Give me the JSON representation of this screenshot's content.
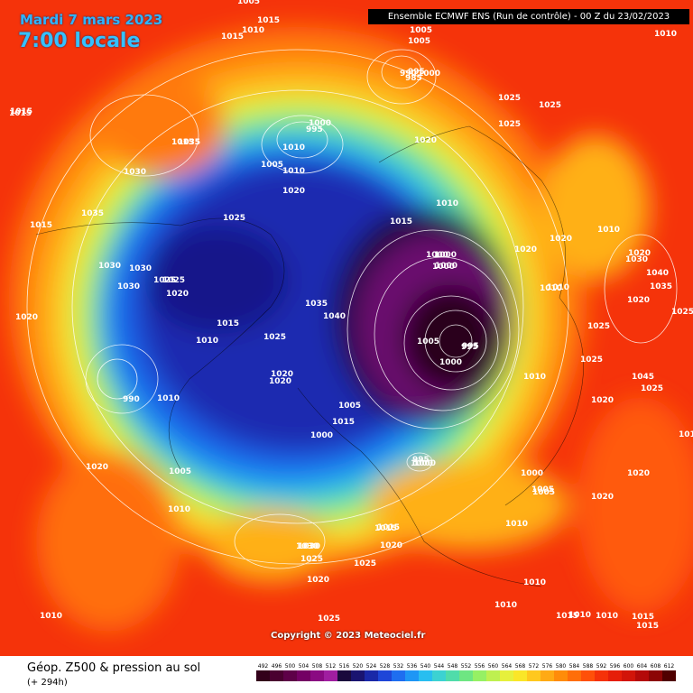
{
  "header": {
    "date": "Mardi 7 mars 2023",
    "time": "7:00 locale",
    "model_banner": "Ensemble ECMWF ENS  (Run de contrôle)  -  00 Z du 23/02/2023"
  },
  "copyright": "Copyright © 2023 Meteociel.fr",
  "footer": {
    "variable_label": "Géop. Z500 & pression au sol",
    "lead_label": "(+ 294h)"
  },
  "legend_scale": [
    {
      "v": "492",
      "c": "#33001a"
    },
    {
      "v": "496",
      "c": "#4a0030"
    },
    {
      "v": "500",
      "c": "#5e0048"
    },
    {
      "v": "504",
      "c": "#740064"
    },
    {
      "v": "508",
      "c": "#8a0a82"
    },
    {
      "v": "512",
      "c": "#a01ea0"
    },
    {
      "v": "516",
      "c": "#1a0a3c"
    },
    {
      "v": "520",
      "c": "#1a1470"
    },
    {
      "v": "524",
      "c": "#1a28a8"
    },
    {
      "v": "528",
      "c": "#1e46d8"
    },
    {
      "v": "532",
      "c": "#1e6ef0"
    },
    {
      "v": "536",
      "c": "#1e96f5"
    },
    {
      "v": "540",
      "c": "#28bef0"
    },
    {
      "v": "544",
      "c": "#3cd2d2"
    },
    {
      "v": "548",
      "c": "#50dcaa"
    },
    {
      "v": "552",
      "c": "#6ee682"
    },
    {
      "v": "556",
      "c": "#96f064"
    },
    {
      "v": "560",
      "c": "#bef050"
    },
    {
      "v": "564",
      "c": "#e6f03c"
    },
    {
      "v": "568",
      "c": "#fae628"
    },
    {
      "v": "572",
      "c": "#ffc81e"
    },
    {
      "v": "576",
      "c": "#ffaa14"
    },
    {
      "v": "580",
      "c": "#ff8c0a"
    },
    {
      "v": "584",
      "c": "#ff6e0a"
    },
    {
      "v": "588",
      "c": "#ff500a"
    },
    {
      "v": "592",
      "c": "#f5320a"
    },
    {
      "v": "596",
      "c": "#e61e0a"
    },
    {
      "v": "600",
      "c": "#d2140a"
    },
    {
      "v": "604",
      "c": "#b40a0a"
    },
    {
      "v": "608",
      "c": "#8c0505"
    },
    {
      "v": "612",
      "c": "#500000"
    }
  ],
  "pressure_labels": [
    {
      "t": "1005"
    },
    {
      "t": "1015"
    },
    {
      "t": "1010"
    },
    {
      "t": "1005"
    },
    {
      "t": "1010"
    },
    {
      "t": "1015"
    },
    {
      "t": "1035"
    },
    {
      "t": "1030"
    },
    {
      "t": "1015"
    },
    {
      "t": "1035"
    },
    {
      "t": "1015"
    },
    {
      "t": "1015"
    },
    {
      "t": "1030"
    },
    {
      "t": "1030"
    },
    {
      "t": "1025"
    },
    {
      "t": "1020"
    },
    {
      "t": "1015"
    },
    {
      "t": "1010"
    },
    {
      "t": "1025"
    },
    {
      "t": "1025"
    },
    {
      "t": "1020"
    },
    {
      "t": "1005"
    },
    {
      "t": "995"
    },
    {
      "t": "990"
    },
    {
      "t": "1010"
    },
    {
      "t": "1020"
    },
    {
      "t": "1005"
    },
    {
      "t": "1010"
    },
    {
      "t": "1000"
    },
    {
      "t": "995"
    },
    {
      "t": "1000"
    },
    {
      "t": "1010"
    },
    {
      "t": "1015"
    },
    {
      "t": "1020"
    },
    {
      "t": "1025"
    },
    {
      "t": "1035"
    },
    {
      "t": "1040"
    },
    {
      "t": "1035"
    },
    {
      "t": "1025"
    },
    {
      "t": "1020"
    },
    {
      "t": "1000"
    },
    {
      "t": "1000"
    },
    {
      "t": "1010"
    },
    {
      "t": "1015"
    },
    {
      "t": "1030"
    },
    {
      "t": "1025"
    },
    {
      "t": "1020"
    },
    {
      "t": "1025"
    },
    {
      "t": "1010"
    },
    {
      "t": "1000"
    },
    {
      "t": "1005"
    },
    {
      "t": "1010"
    },
    {
      "t": "1005"
    },
    {
      "t": "1000"
    },
    {
      "t": "995"
    },
    {
      "t": "990"
    },
    {
      "t": "985"
    },
    {
      "t": "1030"
    },
    {
      "t": "1020"
    },
    {
      "t": "1025"
    },
    {
      "t": "1025"
    },
    {
      "t": "1010"
    },
    {
      "t": "1020"
    },
    {
      "t": "1000"
    },
    {
      "t": "1000"
    },
    {
      "t": "1005"
    },
    {
      "t": "995"
    },
    {
      "t": "1000"
    },
    {
      "t": "1010"
    },
    {
      "t": "1020"
    },
    {
      "t": "1020"
    },
    {
      "t": "1010"
    },
    {
      "t": "1005"
    },
    {
      "t": "1015"
    },
    {
      "t": "1025"
    },
    {
      "t": "1025"
    },
    {
      "t": "1030"
    },
    {
      "t": "1040"
    },
    {
      "t": "1035"
    },
    {
      "t": "1020"
    },
    {
      "t": "1025"
    },
    {
      "t": "1045"
    },
    {
      "t": "1025"
    },
    {
      "t": "1020"
    },
    {
      "t": "1020"
    },
    {
      "t": "1000"
    },
    {
      "t": "1005"
    },
    {
      "t": "1010"
    },
    {
      "t": "1000"
    },
    {
      "t": "995"
    },
    {
      "t": "1015"
    },
    {
      "t": "1015"
    },
    {
      "t": "1020"
    },
    {
      "t": "1010"
    },
    {
      "t": "1010"
    },
    {
      "t": "1015"
    },
    {
      "t": "1010"
    },
    {
      "t": "1025"
    },
    {
      "t": "1030"
    },
    {
      "t": "1020"
    },
    {
      "t": "1015"
    },
    {
      "t": "1010"
    },
    {
      "t": "1015"
    },
    {
      "t": "1010"
    },
    {
      "t": "1020"
    },
    {
      "t": "1015"
    }
  ]
}
